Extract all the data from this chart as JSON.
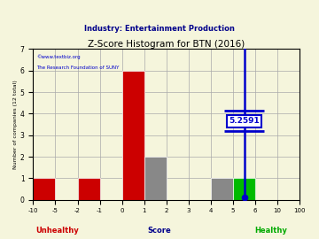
{
  "title": "Z-Score Histogram for BTN (2016)",
  "subtitle": "Industry: Entertainment Production",
  "watermark1": "©www.textbiz.org",
  "watermark2": "The Research Foundation of SUNY",
  "xlabel_score": "Score",
  "ylabel": "Number of companies (12 total)",
  "tick_labels": [
    "-10",
    "-5",
    "-2",
    "-1",
    "0",
    "1",
    "2",
    "3",
    "4",
    "5",
    "6",
    "10",
    "100"
  ],
  "counts": [
    1,
    0,
    1,
    0,
    6,
    2,
    0,
    0,
    1,
    1,
    0,
    0
  ],
  "bar_colors": [
    "#cc0000",
    "#cc0000",
    "#cc0000",
    "#cc0000",
    "#cc0000",
    "#888888",
    "#888888",
    "#888888",
    "#888888",
    "#00bb00",
    "#00bb00",
    "#00bb00"
  ],
  "unhealthy_label": "Unhealthy",
  "healthy_label": "Healthy",
  "unhealthy_color": "#cc0000",
  "healthy_color": "#00aa00",
  "zscore_value": "5.2591",
  "zscore_bin_idx": 9.5,
  "line_color": "#0000cc",
  "annotation_bg": "#ffffff",
  "annotation_border": "#0000cc",
  "ylim": [
    0,
    7
  ],
  "grid_color": "#aaaaaa",
  "bg_color": "#f5f5dc",
  "title_color": "#000000",
  "subtitle_color": "#00008b",
  "watermark_color": "#0000cc",
  "xlabel_color_score": "#00008b",
  "xlabel_color_unhealthy": "#cc0000",
  "xlabel_color_healthy": "#00aa00"
}
